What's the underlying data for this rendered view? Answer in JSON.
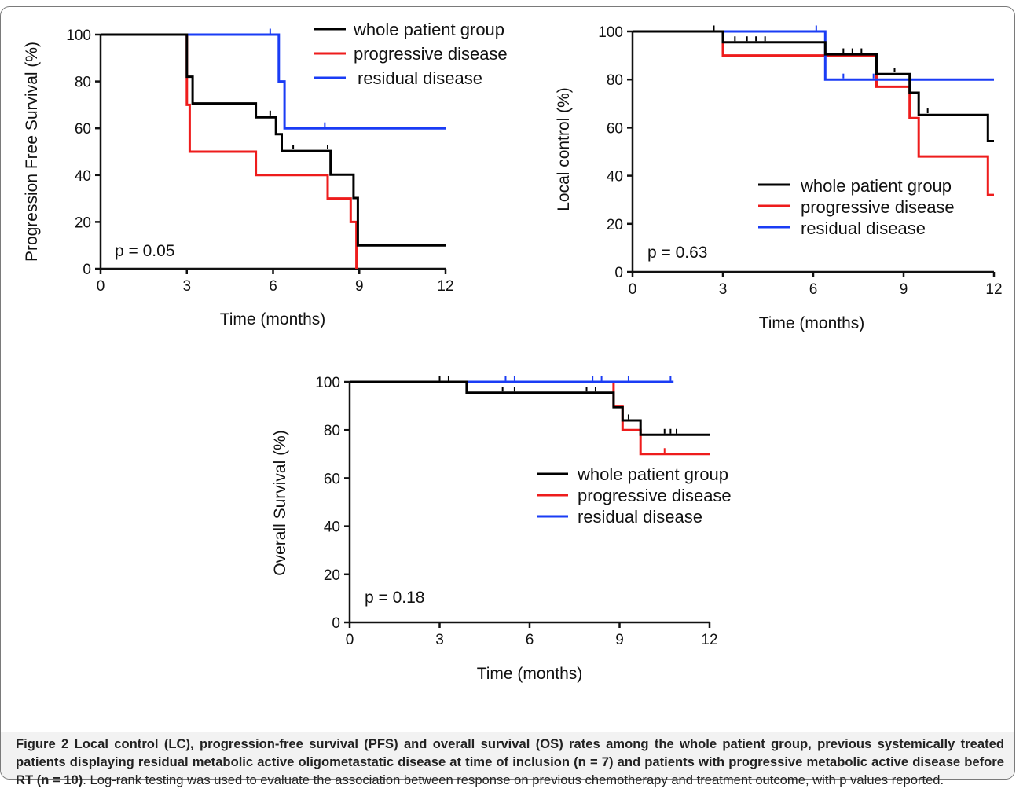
{
  "colors": {
    "whole": "#000000",
    "progressive": "#ee1c1c",
    "residual": "#1a3cf5"
  },
  "caption": {
    "bold": "Figure 2 Local control (LC), progression-free survival (PFS) and overall survival (OS) rates among the whole patient group, previous systemically treated patients displaying residual metabolic active oligometastatic disease at time of inclusion (n = 7) and patients with progressive metabolic active disease before RT (n = 10)",
    "normal": ". Log-rank testing was used to evaluate the association between response on previous chemotherapy and treatment outcome, with p values reported."
  },
  "chart_data": [
    {
      "type": "line",
      "step": true,
      "xlabel": "Time (months)",
      "ylabel": "Progression Free Survival (%)",
      "xlim": [
        0,
        12
      ],
      "ylim": [
        0,
        100
      ],
      "xticks": [
        0,
        3,
        6,
        9,
        12
      ],
      "yticks": [
        0,
        20,
        40,
        60,
        80,
        100
      ],
      "pvalue": "p = 0.05",
      "legend": "top-right",
      "series": [
        {
          "name": "whole patient group",
          "color_key": "whole",
          "points": [
            [
              0,
              100
            ],
            [
              3,
              100
            ],
            [
              3,
              82
            ],
            [
              3.2,
              82
            ],
            [
              3.2,
              70.6
            ],
            [
              5.4,
              70.6
            ],
            [
              5.4,
              64.7
            ],
            [
              6.1,
              64.7
            ],
            [
              6.1,
              57.5
            ],
            [
              6.3,
              57.5
            ],
            [
              6.3,
              50.3
            ],
            [
              8,
              50.3
            ],
            [
              8,
              40.2
            ],
            [
              8.8,
              40.2
            ],
            [
              8.8,
              30.2
            ],
            [
              8.95,
              30.2
            ],
            [
              8.95,
              10
            ],
            [
              12,
              10
            ]
          ],
          "censor": [
            [
              5.9,
              65.5
            ],
            [
              6.7,
              51
            ],
            [
              7.9,
              51
            ]
          ]
        },
        {
          "name": "progressive disease",
          "color_key": "progressive",
          "points": [
            [
              0,
              100
            ],
            [
              3,
              100
            ],
            [
              3,
              70
            ],
            [
              3.1,
              70
            ],
            [
              3.1,
              50
            ],
            [
              5.4,
              50
            ],
            [
              5.4,
              40
            ],
            [
              7.9,
              40
            ],
            [
              7.9,
              30
            ],
            [
              8.7,
              30
            ],
            [
              8.7,
              20
            ],
            [
              8.9,
              20
            ],
            [
              8.9,
              0
            ]
          ],
          "censor": []
        },
        {
          "name": "residual disease",
          "color_key": "residual",
          "points": [
            [
              0,
              100
            ],
            [
              6.2,
              100
            ],
            [
              6.2,
              80
            ],
            [
              6.4,
              80
            ],
            [
              6.4,
              60
            ],
            [
              12,
              60
            ]
          ],
          "censor": [
            [
              5.9,
              100.5
            ],
            [
              7.8,
              60.5
            ]
          ]
        }
      ]
    },
    {
      "type": "line",
      "step": true,
      "xlabel": "Time (months)",
      "ylabel": "Local control (%)",
      "xlim": [
        0,
        12
      ],
      "ylim": [
        0,
        100
      ],
      "xticks": [
        0,
        3,
        6,
        9,
        12
      ],
      "yticks": [
        0,
        20,
        40,
        60,
        80,
        100
      ],
      "pvalue": "p = 0.63",
      "legend": "right",
      "series": [
        {
          "name": "whole patient group",
          "color_key": "whole",
          "points": [
            [
              0,
              100
            ],
            [
              3,
              100
            ],
            [
              3,
              95.5
            ],
            [
              6.4,
              95.5
            ],
            [
              6.4,
              90.5
            ],
            [
              8.1,
              90.5
            ],
            [
              8.1,
              82.3
            ],
            [
              9.2,
              82.3
            ],
            [
              9.2,
              74.5
            ],
            [
              9.5,
              74.5
            ],
            [
              9.5,
              65.3
            ],
            [
              11.8,
              65.3
            ],
            [
              11.8,
              54.4
            ],
            [
              12,
              54.4
            ]
          ],
          "censor": [
            [
              2.7,
              100.5
            ],
            [
              3.4,
              96
            ],
            [
              3.8,
              96
            ],
            [
              4.1,
              96
            ],
            [
              4.4,
              96
            ],
            [
              7,
              91
            ],
            [
              7.3,
              91
            ],
            [
              7.6,
              91
            ],
            [
              8.7,
              83
            ],
            [
              9.8,
              66
            ]
          ]
        },
        {
          "name": "progressive disease",
          "color_key": "progressive",
          "points": [
            [
              0,
              100
            ],
            [
              3,
              100
            ],
            [
              3,
              90
            ],
            [
              6.4,
              90
            ],
            [
              6.4,
              90
            ],
            [
              8.1,
              90
            ],
            [
              8.1,
              77
            ],
            [
              9.2,
              77
            ],
            [
              9.2,
              64
            ],
            [
              9.5,
              64
            ],
            [
              9.5,
              48
            ],
            [
              11.8,
              48
            ],
            [
              11.8,
              32
            ],
            [
              12,
              32
            ]
          ],
          "censor": []
        },
        {
          "name": "residual disease",
          "color_key": "residual",
          "points": [
            [
              0,
              100
            ],
            [
              6.4,
              100
            ],
            [
              6.4,
              80
            ],
            [
              12,
              80
            ]
          ],
          "censor": [
            [
              6.1,
              100.5
            ],
            [
              7,
              80.5
            ],
            [
              8,
              80.5
            ]
          ]
        }
      ]
    },
    {
      "type": "line",
      "step": true,
      "xlabel": "Time (months)",
      "ylabel": "Overall Survival (%)",
      "xlim": [
        0,
        12
      ],
      "ylim": [
        0,
        100
      ],
      "xticks": [
        0,
        3,
        6,
        9,
        12
      ],
      "yticks": [
        0,
        20,
        40,
        60,
        80,
        100
      ],
      "pvalue": "p = 0.18",
      "legend": "right",
      "series": [
        {
          "name": "whole patient group",
          "color_key": "whole",
          "points": [
            [
              0,
              100
            ],
            [
              3.9,
              100
            ],
            [
              3.9,
              95.5
            ],
            [
              8.8,
              95.5
            ],
            [
              8.8,
              89.5
            ],
            [
              9.1,
              89.5
            ],
            [
              9.1,
              84
            ],
            [
              9.7,
              84
            ],
            [
              9.7,
              78
            ],
            [
              12,
              78
            ]
          ],
          "censor": [
            [
              3,
              100.5
            ],
            [
              3.3,
              100.5
            ],
            [
              5.1,
              96
            ],
            [
              5.5,
              96
            ],
            [
              7.9,
              96
            ],
            [
              8.2,
              96
            ],
            [
              9.3,
              84.5
            ],
            [
              10.5,
              78.5
            ],
            [
              10.7,
              78.5
            ],
            [
              10.9,
              78.5
            ]
          ]
        },
        {
          "name": "progressive disease",
          "color_key": "progressive",
          "points": [
            [
              0,
              100
            ],
            [
              8.8,
              100
            ],
            [
              8.8,
              90
            ],
            [
              9.1,
              90
            ],
            [
              9.1,
              80
            ],
            [
              9.7,
              80
            ],
            [
              9.7,
              70
            ],
            [
              12,
              70
            ]
          ],
          "censor": [
            [
              10.5,
              70.5
            ]
          ]
        },
        {
          "name": "residual disease",
          "color_key": "residual",
          "points": [
            [
              0,
              100
            ],
            [
              10.8,
              100
            ]
          ],
          "censor": [
            [
              5.2,
              100.5
            ],
            [
              5.5,
              100.5
            ],
            [
              8.1,
              100.5
            ],
            [
              8.4,
              100.5
            ],
            [
              9.3,
              100.5
            ],
            [
              10.7,
              100.5
            ]
          ]
        }
      ]
    }
  ]
}
